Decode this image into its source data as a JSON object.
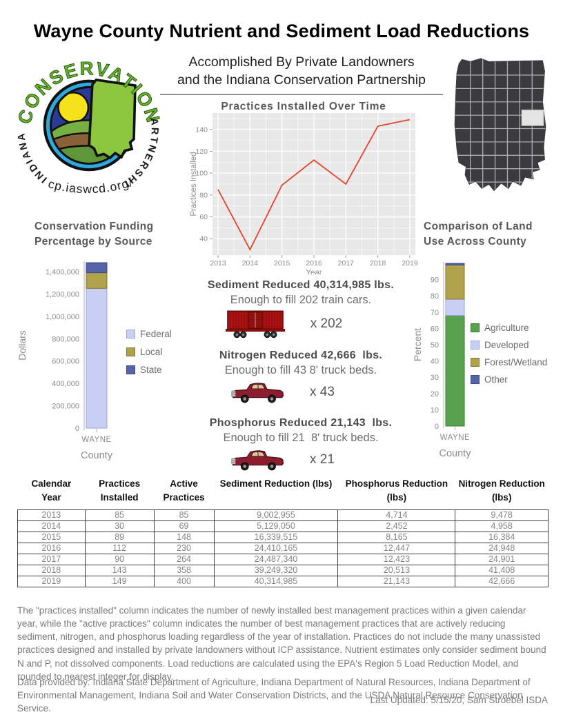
{
  "page": {
    "title": "Wayne County Nutrient and Sediment Load Reductions",
    "subtitle_line1": "Accomplished By Private Landowners",
    "subtitle_line2": "and the Indiana Conservation Partnership",
    "last_updated": "Last Updated: 5/15/20, Sam Stroebel ISDA"
  },
  "logo": {
    "arc_top": "CONSERVATION",
    "arc_left": "INDIANA",
    "arc_right": "PARTNERSHIP",
    "url": "icp.iaswcd.org/"
  },
  "map": {
    "state": "Indiana",
    "highlighted_county": "Wayne"
  },
  "colors": {
    "line_red": "#e8402c",
    "panel_gray": "#e8e8e8",
    "federal_developed": "#c9cff3",
    "local_forest": "#b0a14b",
    "state_other": "#5563a8",
    "agriculture_green": "#57a14e",
    "map_dark": "#3b3a3e",
    "axis_text": "#8c8c8c",
    "chart_title": "#595959"
  },
  "chart_data": [
    {
      "type": "line",
      "title": "Practices Installed Over Time",
      "xlabel": "Year",
      "ylabel": "Practices Installed",
      "x": [
        2013,
        2014,
        2015,
        2016,
        2017,
        2018,
        2019
      ],
      "values": [
        85,
        30,
        89,
        112,
        90,
        143,
        149
      ],
      "yticks": [
        40,
        60,
        80,
        100,
        120,
        140
      ],
      "ylim": [
        25,
        155
      ],
      "grid": true,
      "line_color": "#e8402c",
      "panel_color": "#e8e8e8",
      "legend_position": "none"
    },
    {
      "type": "bar",
      "stacked": true,
      "title": "Conservation Funding Percentage by Source",
      "title_lines": [
        "Conservation Funding",
        "Percentage by Source"
      ],
      "xlabel": "County",
      "ylabel": "Dollars",
      "categories": [
        "WAYNE"
      ],
      "series": [
        {
          "name": "Federal",
          "values": [
            1250000
          ],
          "color": "#c9cff3",
          "border": "#9aa6e0"
        },
        {
          "name": "Local",
          "values": [
            140000
          ],
          "color": "#b0a14b",
          "border": "#857737"
        },
        {
          "name": "State",
          "values": [
            90000
          ],
          "color": "#5563a8",
          "border": "#3c4a85"
        }
      ],
      "yticks": [
        0,
        200000,
        400000,
        600000,
        800000,
        1000000,
        1200000,
        1400000
      ],
      "ylim": [
        0,
        1480000
      ],
      "legend_position": "right"
    },
    {
      "type": "bar",
      "stacked": true,
      "title": "Comparison of Land Use Across County",
      "title_lines": [
        "Comparison of Land",
        "Use Across County"
      ],
      "xlabel": "County",
      "ylabel": "Percent",
      "categories": [
        "WAYNE"
      ],
      "series": [
        {
          "name": "Agriculture",
          "values": [
            68
          ],
          "color": "#57a14e",
          "border": "#3e7a38"
        },
        {
          "name": "Developed",
          "values": [
            10
          ],
          "color": "#c9cff3",
          "border": "#9aa6e0"
        },
        {
          "name": "Forest/Wetland",
          "values": [
            21
          ],
          "color": "#b0a14b",
          "border": "#857737"
        },
        {
          "name": "Other",
          "values": [
            1
          ],
          "color": "#5563a8",
          "border": "#3c4a85"
        }
      ],
      "yticks": [
        0,
        10,
        20,
        30,
        40,
        50,
        60,
        70,
        80,
        90
      ],
      "ylim": [
        0,
        100
      ],
      "legend_position": "right"
    }
  ],
  "reductions": [
    {
      "heading": "Sediment Reduced 40,314,985 lbs.",
      "subtext": "Enough to fill 202 train cars.",
      "icon": "train-car-icon",
      "multiplier": "x 202"
    },
    {
      "heading": "Nitrogen Reduced 42,666  lbs.",
      "subtext": "Enough to fill 43 8' truck beds.",
      "icon": "pickup-truck-icon",
      "multiplier": "x 43"
    },
    {
      "heading": "Phosphorus Reduced 21,143  lbs.",
      "subtext": "Enough to fill 21  8' truck beds.",
      "icon": "pickup-truck-icon",
      "multiplier": "x 21"
    }
  ],
  "table": {
    "headers": [
      "Calendar Year",
      "Practices Installed",
      "Active Practices",
      "Sediment Reduction (lbs)",
      "Phosphorus Reduction (lbs)",
      "Nitrogen Reduction (lbs)"
    ],
    "rows": [
      [
        "2013",
        "85",
        "85",
        "9,002,955",
        "4,714",
        "9,478"
      ],
      [
        "2014",
        "30",
        "69",
        "5,129,050",
        "2,452",
        "4,958"
      ],
      [
        "2015",
        "89",
        "148",
        "16,339,515",
        "8,165",
        "16,384"
      ],
      [
        "2016",
        "112",
        "230",
        "24,410,165",
        "12,447",
        "24,948"
      ],
      [
        "2017",
        "90",
        "264",
        "24,487,340",
        "12,423",
        "24,901"
      ],
      [
        "2018",
        "143",
        "358",
        "39,249,320",
        "20,513",
        "41,408"
      ],
      [
        "2019",
        "149",
        "400",
        "40,314,985",
        "21,143",
        "42,666"
      ]
    ]
  },
  "notes": {
    "paragraph1": "The \"practices installed\" column indicates the number of newly installed best management practices within a given calendar year, while the \"active practices\" column indicates the number of best management practices that are actively reducing sediment, nitrogen, and phosphorus loading regardless of the year of installation.  Practices do not include the many unassisted practices designed and installed by private landowners without ICP assistance. Nutrient estimates only consider sediment bound N and P, not dissolved components. Load reductions are calculated using the EPA's Region 5 Load Reduction Model, and rounded to nearest integer for display.",
    "paragraph2": "Data provided by: Indiana State Department of Agriculture, Indiana Department of Natural Resources, Indiana Department of Environmental Management, Indiana Soil and Water Conservation Districts, and the USDA Natural Resource Conservation Service."
  }
}
